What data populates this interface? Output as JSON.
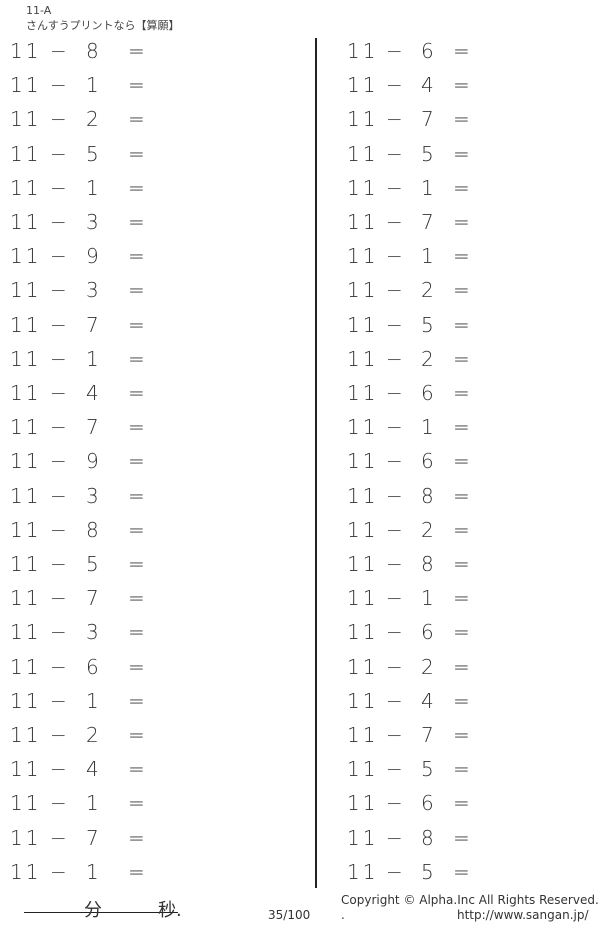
{
  "header": {
    "code": "11-A",
    "title": "さんすうプリントなら【算願】"
  },
  "problem_format": {
    "minuend": "11",
    "operator": "−",
    "equals": "="
  },
  "left_column": [
    "8",
    "1",
    "2",
    "5",
    "1",
    "3",
    "9",
    "3",
    "7",
    "1",
    "4",
    "7",
    "9",
    "3",
    "8",
    "5",
    "7",
    "3",
    "6",
    "1",
    "2",
    "4",
    "1",
    "7",
    "1"
  ],
  "right_column": [
    "6",
    "4",
    "7",
    "5",
    "1",
    "7",
    "1",
    "2",
    "5",
    "2",
    "6",
    "1",
    "6",
    "8",
    "2",
    "8",
    "1",
    "6",
    "2",
    "4",
    "7",
    "5",
    "6",
    "8",
    "5"
  ],
  "footer": {
    "minutes_label": "分",
    "seconds_label": "秒.",
    "page": "35/100",
    "copyright": "Copyright ©  Alpha.Inc All Rights Reserved.",
    "dot": ".",
    "url": "http://www.sangan.jp/"
  }
}
